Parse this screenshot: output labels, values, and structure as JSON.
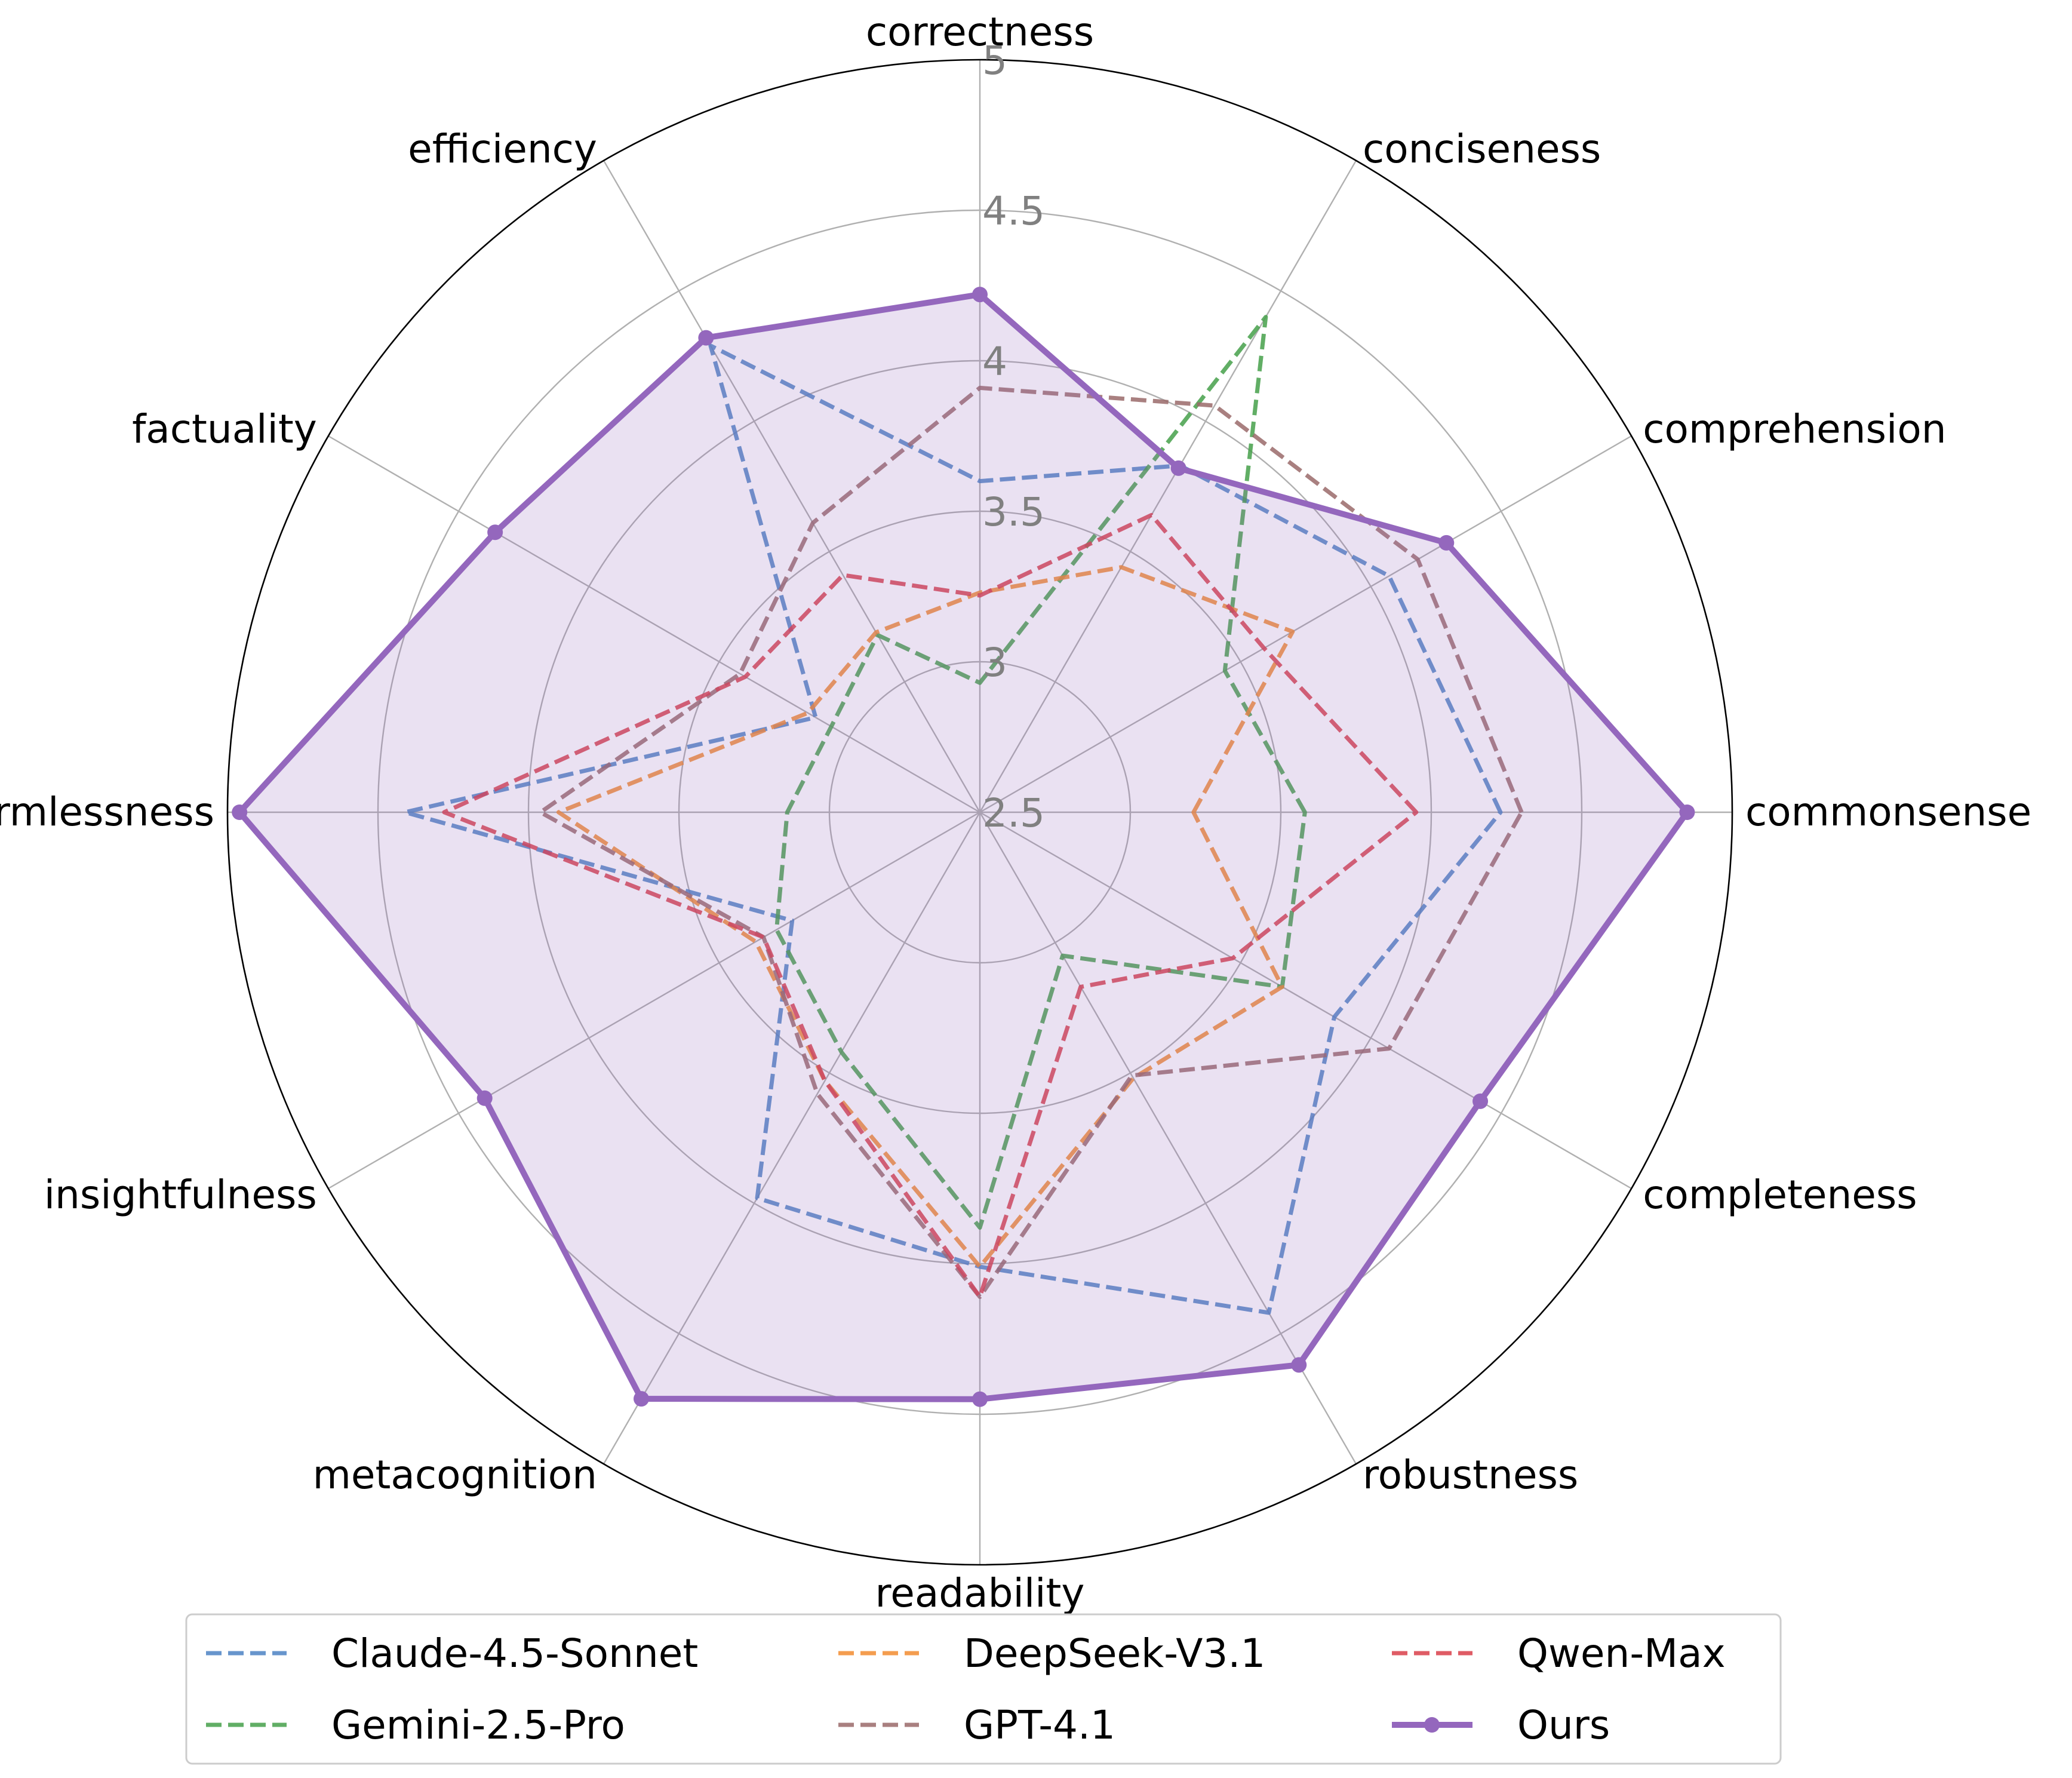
{
  "chart_data": {
    "type": "radar",
    "categories": [
      "commonsense",
      "comprehension",
      "conciseness",
      "correctness",
      "efficiency",
      "factuality",
      "harmlessness",
      "insightfulness",
      "metacognition",
      "readability",
      "robustness",
      "completeness"
    ],
    "rlim": [
      2.5,
      5
    ],
    "rticks": [
      2.5,
      3,
      3.5,
      4,
      4.5,
      5
    ],
    "rtick_labels": [
      "2.5",
      "3",
      "3.5",
      "4",
      "4.5",
      "5"
    ],
    "grid": true,
    "legend_position": "bottom",
    "series": [
      {
        "name": "Claude-4.5-Sonnet",
        "style": "dashed",
        "color": "#4c82c3",
        "values": {
          "conciseness": 3.83,
          "comprehension": 4.07,
          "completeness": 3.86,
          "commonsense": 4.23,
          "robustness": 4.42,
          "readability": 4.01,
          "metacognition": 3.98,
          "insightfulness": 3.22,
          "harmlessness": 4.41,
          "factuality": 3.13,
          "efficiency": 4.29,
          "correctness": 3.6
        }
      },
      {
        "name": "Gemini-2.5-Pro",
        "style": "dashed",
        "color": "#45a04a",
        "values": {
          "conciseness": 4.4,
          "comprehension": 3.44,
          "completeness": 3.66,
          "commonsense": 3.58,
          "robustness": 3.05,
          "readability": 3.88,
          "metacognition": 3.42,
          "insightfulness": 3.28,
          "harmlessness": 3.14,
          "factuality": 3.07,
          "efficiency": 3.18,
          "correctness": 2.93
        }
      },
      {
        "name": "DeepSeek-V3.1",
        "style": "dashed",
        "color": "#f28c30",
        "values": {
          "conciseness": 3.44,
          "comprehension": 3.7,
          "completeness": 3.66,
          "commonsense": 3.21,
          "robustness": 3.52,
          "readability": 4.01,
          "metacognition": 3.53,
          "insightfulness": 3.36,
          "harmlessness": 3.9,
          "factuality": 3.16,
          "efficiency": 3.19,
          "correctness": 3.23
        }
      },
      {
        "name": "GPT-4.1",
        "style": "dashed",
        "color": "#9a6a6a",
        "values": {
          "conciseness": 4.06,
          "comprehension": 4.18,
          "completeness": 4.07,
          "commonsense": 4.3,
          "robustness": 3.51,
          "readability": 4.11,
          "metacognition": 3.58,
          "insightfulness": 3.33,
          "harmlessness": 3.96,
          "factuality": 3.42,
          "efficiency": 3.61,
          "correctness": 3.91
        }
      },
      {
        "name": "Qwen-Max",
        "style": "dashed",
        "color": "#d9404a",
        "values": {
          "conciseness": 3.64,
          "comprehension": 3.59,
          "completeness": 3.47,
          "commonsense": 3.95,
          "robustness": 3.17,
          "readability": 4.11,
          "metacognition": 3.53,
          "insightfulness": 3.33,
          "harmlessness": 4.28,
          "factuality": 3.4,
          "efficiency": 3.41,
          "correctness": 3.22
        }
      },
      {
        "name": "Ours",
        "style": "solid-markers",
        "color": "#9467bd",
        "values": {
          "conciseness": 3.82,
          "comprehension": 4.29,
          "completeness": 4.42,
          "commonsense": 4.85,
          "robustness": 4.62,
          "readability": 4.45,
          "metacognition": 4.75,
          "insightfulness": 4.4,
          "harmlessness": 4.96,
          "factuality": 4.36,
          "efficiency": 4.32,
          "correctness": 4.22
        }
      }
    ]
  }
}
